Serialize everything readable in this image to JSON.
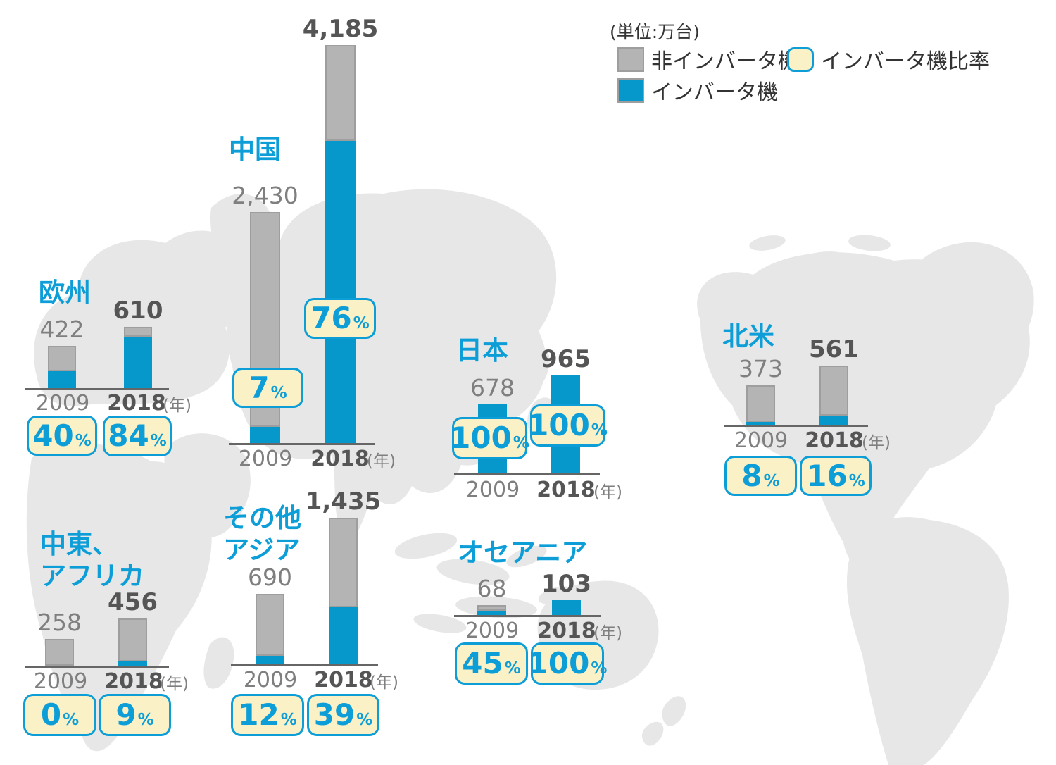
{
  "unit_note": "(単位:万台)",
  "legend": {
    "non_inverter": "非インバータ機",
    "inverter": "インバータ機",
    "ratio": "インバータ機比率"
  },
  "years": {
    "y2009": "2009",
    "y2018": "2018",
    "unit": "(年)"
  },
  "percent_sign": "%",
  "colors": {
    "bar_blue": "#0698cb",
    "bar_gray": "#b4b4b4",
    "accent_blue": "#0d9ed8",
    "badge_fill": "#fbf1c7",
    "map_gray": "#e7e7e7"
  },
  "chart_data": {
    "type": "bar",
    "subtype": "stacked-by-region-on-world-map",
    "unit": "万台",
    "categories": [
      "2009",
      "2018"
    ],
    "series_legend": [
      "非インバータ機",
      "インバータ機"
    ],
    "ratio_legend": "インバータ機比率",
    "regions": [
      {
        "id": "europe",
        "name_lines": [
          "欧州"
        ],
        "values": {
          "2009": 422,
          "2018": 610
        },
        "value_labels": {
          "2009": "422",
          "2018": "610"
        },
        "inverter_ratio_pct": {
          "2009": 40,
          "2018": 84
        },
        "ratio_labels": {
          "2009": "40",
          "2018": "84"
        }
      },
      {
        "id": "china",
        "name_lines": [
          "中国"
        ],
        "values": {
          "2009": 2430,
          "2018": 4185
        },
        "value_labels": {
          "2009": "2,430",
          "2018": "4,185"
        },
        "inverter_ratio_pct": {
          "2009": 7,
          "2018": 76
        },
        "ratio_labels": {
          "2009": "7",
          "2018": "76"
        }
      },
      {
        "id": "japan",
        "name_lines": [
          "日本"
        ],
        "values": {
          "2009": 678,
          "2018": 965
        },
        "value_labels": {
          "2009": "678",
          "2018": "965"
        },
        "inverter_ratio_pct": {
          "2009": 100,
          "2018": 100
        },
        "ratio_labels": {
          "2009": "100",
          "2018": "100"
        }
      },
      {
        "id": "north-america",
        "name_lines": [
          "北米"
        ],
        "values": {
          "2009": 373,
          "2018": 561
        },
        "value_labels": {
          "2009": "373",
          "2018": "561"
        },
        "inverter_ratio_pct": {
          "2009": 8,
          "2018": 16
        },
        "ratio_labels": {
          "2009": "8",
          "2018": "16"
        }
      },
      {
        "id": "middle-east-africa",
        "name_lines": [
          "中東、",
          "アフリカ"
        ],
        "values": {
          "2009": 258,
          "2018": 456
        },
        "value_labels": {
          "2009": "258",
          "2018": "456"
        },
        "inverter_ratio_pct": {
          "2009": 0,
          "2018": 9
        },
        "ratio_labels": {
          "2009": "0",
          "2018": "9"
        }
      },
      {
        "id": "other-asia",
        "name_lines": [
          "その他",
          "アジア"
        ],
        "values": {
          "2009": 690,
          "2018": 1435
        },
        "value_labels": {
          "2009": "690",
          "2018": "1,435"
        },
        "inverter_ratio_pct": {
          "2009": 12,
          "2018": 39
        },
        "ratio_labels": {
          "2009": "12",
          "2018": "39"
        }
      },
      {
        "id": "oceania",
        "name_lines": [
          "オセアニア"
        ],
        "values": {
          "2009": 68,
          "2018": 103
        },
        "value_labels": {
          "2009": "68",
          "2018": "103"
        },
        "inverter_ratio_pct": {
          "2009": 45,
          "2018": 100
        },
        "ratio_labels": {
          "2009": "45",
          "2018": "100"
        }
      }
    ]
  }
}
